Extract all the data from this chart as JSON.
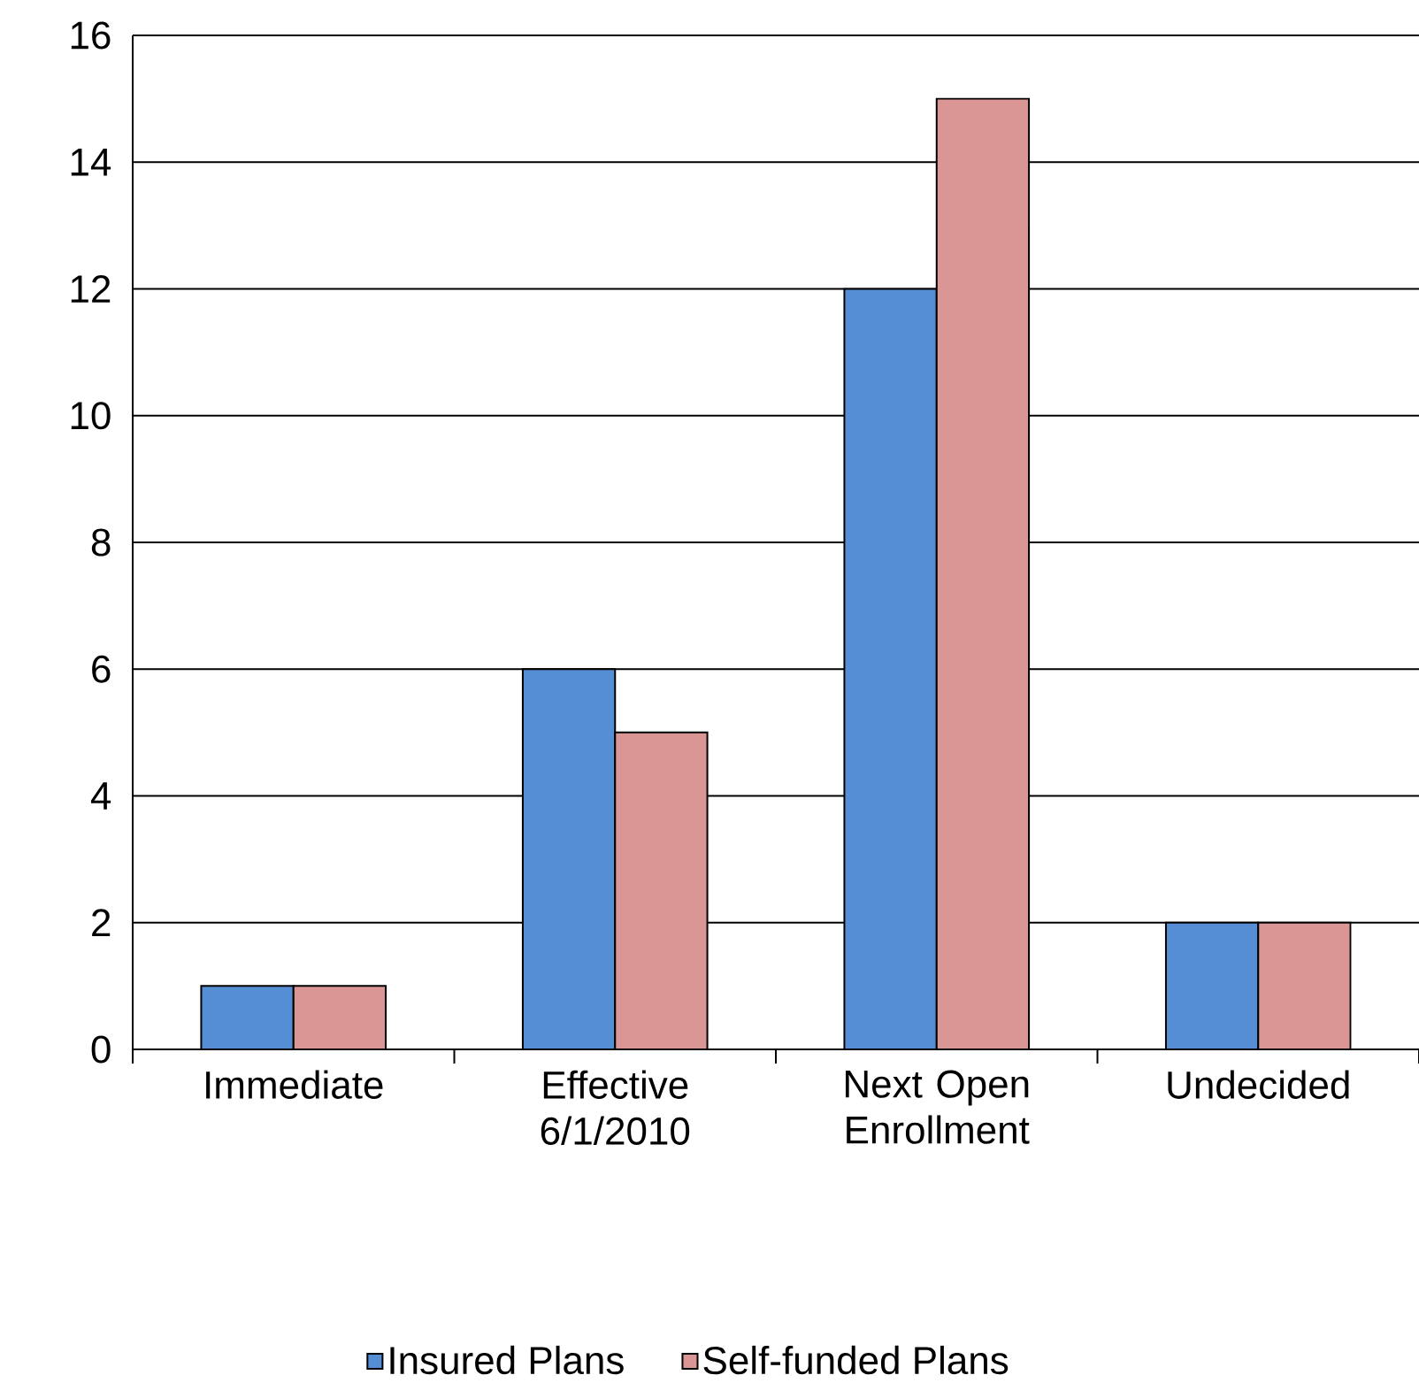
{
  "chart_data": {
    "type": "bar",
    "categories": [
      "Immediate",
      "Effective 6/1/2010",
      "Next Open Enrollment",
      "Undecided"
    ],
    "series": [
      {
        "name": "Insured Plans",
        "color": "#558ed5",
        "values": [
          1,
          6,
          12,
          2
        ]
      },
      {
        "name": "Self-funded Plans",
        "color": "#d99694",
        "values": [
          1,
          5,
          15,
          2
        ]
      }
    ],
    "ylim": [
      0,
      16
    ],
    "yticks": [
      0,
      2,
      4,
      6,
      8,
      10,
      12,
      14,
      16
    ],
    "grid": "y",
    "legend": "bottom"
  }
}
